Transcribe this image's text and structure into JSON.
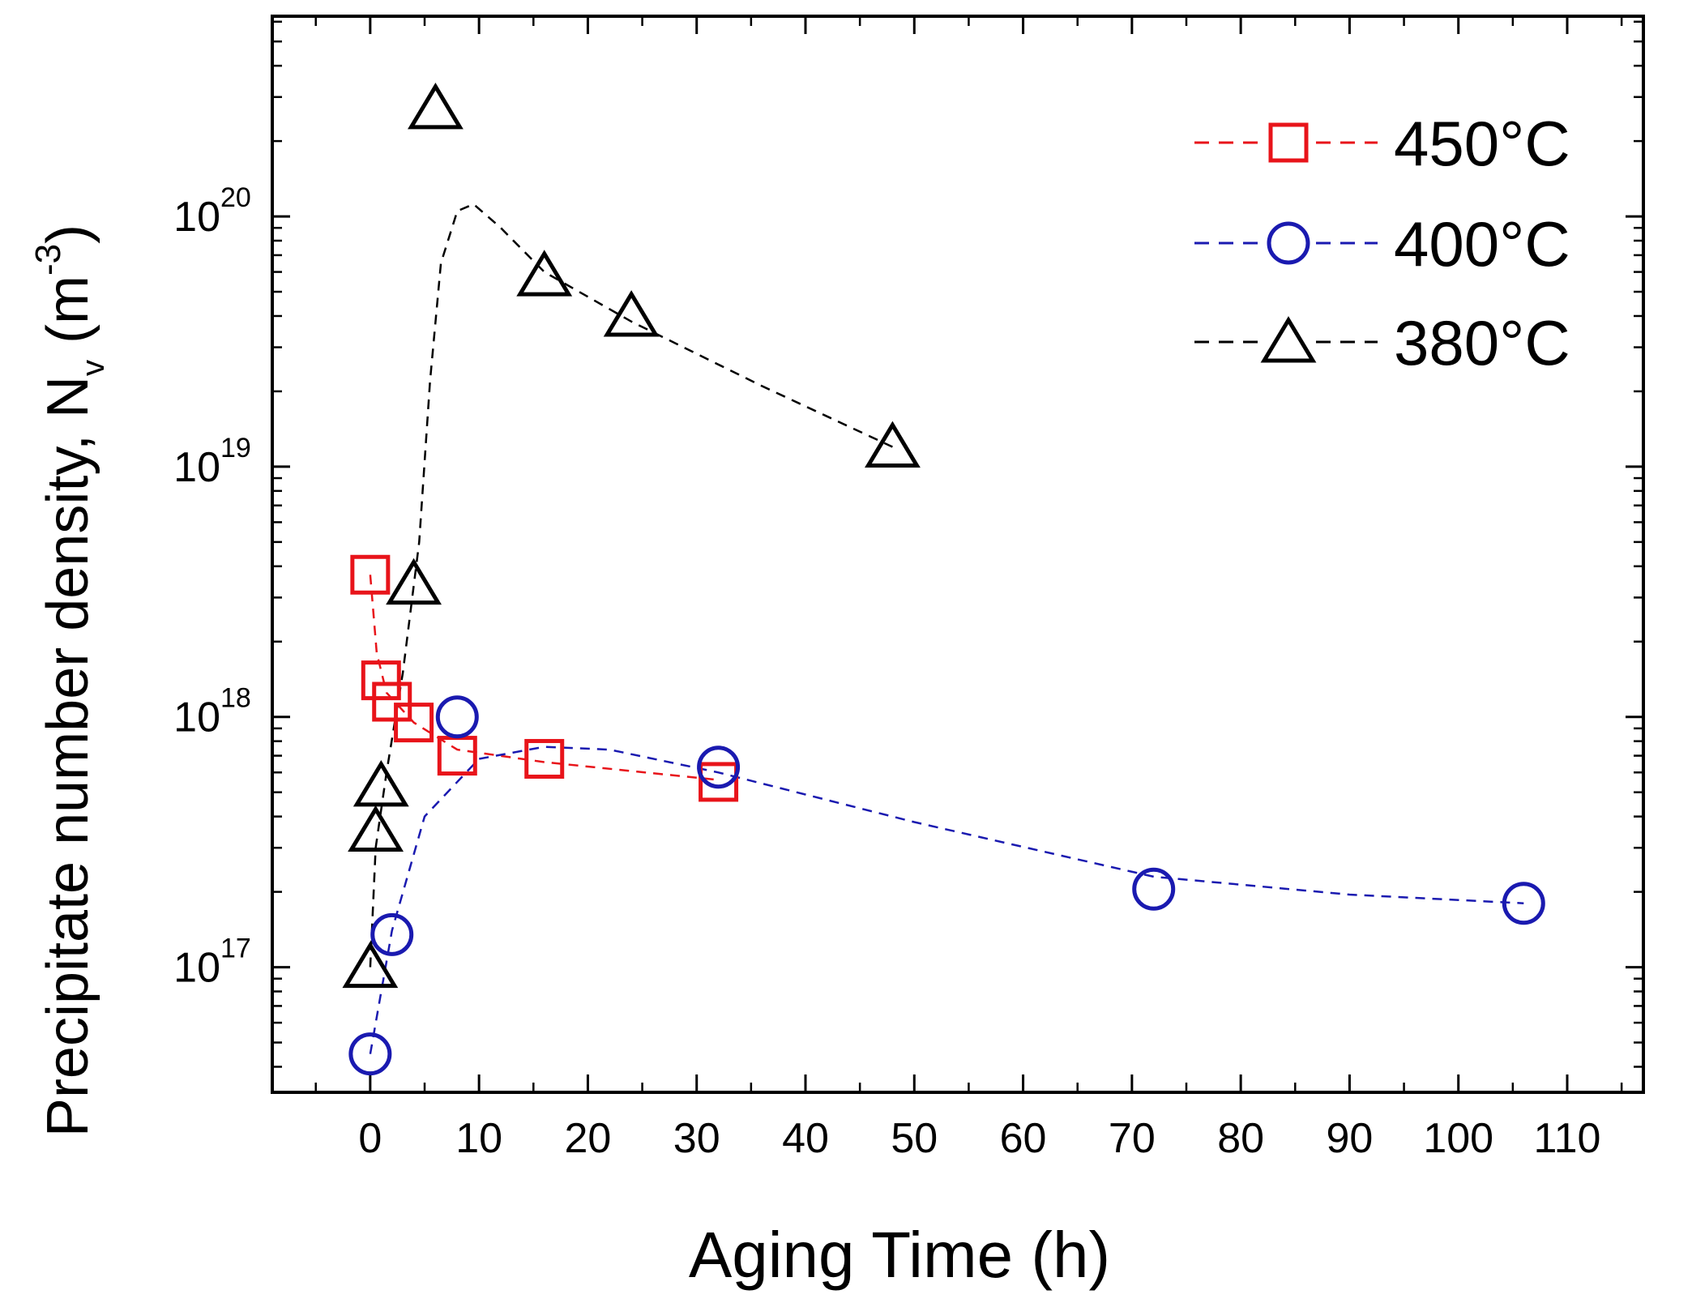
{
  "chart_data": {
    "type": "scatter",
    "title": "",
    "xlabel": "Aging Time (h)",
    "ylabel_main": "Precipitate number density, N",
    "ylabel_sub": "v",
    "ylabel_unit_open": "(m",
    "ylabel_unit_sup": "-3",
    "ylabel_unit_close": ")",
    "xlim": [
      -9,
      117
    ],
    "ylim_log10": [
      16.5,
      20.8
    ],
    "x_ticks": [
      {
        "value": 0,
        "label": "0"
      },
      {
        "value": 10,
        "label": "10"
      },
      {
        "value": 20,
        "label": "20"
      },
      {
        "value": 30,
        "label": "30"
      },
      {
        "value": 40,
        "label": "40"
      },
      {
        "value": 50,
        "label": "50"
      },
      {
        "value": 60,
        "label": "60"
      },
      {
        "value": 70,
        "label": "70"
      },
      {
        "value": 80,
        "label": "80"
      },
      {
        "value": 90,
        "label": "90"
      },
      {
        "value": 100,
        "label": "100"
      },
      {
        "value": 110,
        "label": "110"
      }
    ],
    "y_ticks": [
      {
        "exp": 17,
        "base": "10",
        "sup": "17"
      },
      {
        "exp": 18,
        "base": "10",
        "sup": "18"
      },
      {
        "exp": 19,
        "base": "10",
        "sup": "19"
      },
      {
        "exp": 20,
        "base": "10",
        "sup": "20"
      }
    ],
    "legend_position": "top-right",
    "series": [
      {
        "name": "450°C",
        "color": "#e8141a",
        "marker": "square",
        "points": [
          {
            "x": 0,
            "y": 3.7e+18
          },
          {
            "x": 1,
            "y": 1.4e+18
          },
          {
            "x": 2,
            "y": 1.15e+18
          },
          {
            "x": 4,
            "y": 9.5e+17
          },
          {
            "x": 8,
            "y": 7e+17
          },
          {
            "x": 16,
            "y": 6.8e+17
          },
          {
            "x": 32,
            "y": 5.5e+17
          }
        ],
        "trend": [
          {
            "x": 0,
            "y": 3.7e+18
          },
          {
            "x": 0.6,
            "y": 1.8e+18
          },
          {
            "x": 1.5,
            "y": 1.25e+18
          },
          {
            "x": 4,
            "y": 9.5e+17
          },
          {
            "x": 8,
            "y": 7.4e+17
          },
          {
            "x": 16,
            "y": 6.6e+17
          },
          {
            "x": 32,
            "y": 5.6e+17
          }
        ]
      },
      {
        "name": "400°C",
        "color": "#1a1ab0",
        "marker": "circle",
        "points": [
          {
            "x": 0,
            "y": 4.5e+16
          },
          {
            "x": 2,
            "y": 1.35e+17
          },
          {
            "x": 8,
            "y": 1e+18
          },
          {
            "x": 32,
            "y": 6.3e+17
          },
          {
            "x": 72,
            "y": 2.05e+17
          },
          {
            "x": 106,
            "y": 1.8e+17
          }
        ],
        "trend": [
          {
            "x": 0,
            "y": 4.5e+16
          },
          {
            "x": 2,
            "y": 1.4e+17
          },
          {
            "x": 5,
            "y": 4e+17
          },
          {
            "x": 10,
            "y": 6.8e+17
          },
          {
            "x": 16,
            "y": 7.6e+17
          },
          {
            "x": 22,
            "y": 7.4e+17
          },
          {
            "x": 32,
            "y": 6e+17
          },
          {
            "x": 50,
            "y": 3.8e+17
          },
          {
            "x": 72,
            "y": 2.3e+17
          },
          {
            "x": 90,
            "y": 1.95e+17
          },
          {
            "x": 106,
            "y": 1.8e+17
          }
        ]
      },
      {
        "name": "380°C",
        "color": "#000000",
        "marker": "triangle",
        "points": [
          {
            "x": 0,
            "y": 1e+17
          },
          {
            "x": 0.5,
            "y": 3.5e+17
          },
          {
            "x": 1,
            "y": 5.3e+17
          },
          {
            "x": 4,
            "y": 3.4e+18
          },
          {
            "x": 6,
            "y": 2.7e+20
          },
          {
            "x": 16,
            "y": 5.8e+19
          },
          {
            "x": 24,
            "y": 4e+19
          },
          {
            "x": 48,
            "y": 1.2e+19
          }
        ],
        "trend": [
          {
            "x": 0,
            "y": 1e+17
          },
          {
            "x": 0.5,
            "y": 3e+17
          },
          {
            "x": 1.5,
            "y": 6e+17
          },
          {
            "x": 3,
            "y": 1.5e+18
          },
          {
            "x": 4.5,
            "y": 5e+18
          },
          {
            "x": 5.5,
            "y": 2.2e+19
          },
          {
            "x": 6.5,
            "y": 6.5e+19
          },
          {
            "x": 8,
            "y": 1.05e+20
          },
          {
            "x": 9.5,
            "y": 1.12e+20
          },
          {
            "x": 12,
            "y": 9e+19
          },
          {
            "x": 16,
            "y": 6e+19
          },
          {
            "x": 24,
            "y": 3.8e+19
          },
          {
            "x": 36,
            "y": 2.1e+19
          },
          {
            "x": 48,
            "y": 1.2e+19
          }
        ]
      }
    ]
  }
}
